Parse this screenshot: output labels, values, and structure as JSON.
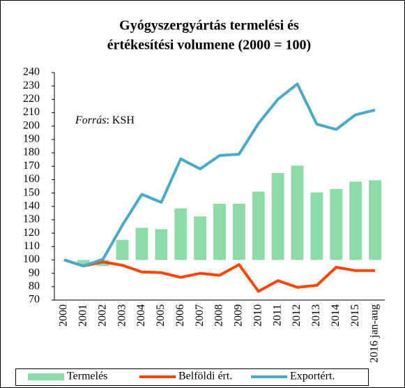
{
  "chart_data": {
    "type": "bar_line",
    "title": [
      "Gyógyszergyártás termelési és",
      "értékesítési volumene (2000 = 100)"
    ],
    "annotation": [
      "Forrás",
      ": KSH"
    ],
    "categories": [
      "2000",
      "2001",
      "2002",
      "2003",
      "2004",
      "2005",
      "2006",
      "2007",
      "2008",
      "2009",
      "2010",
      "2011",
      "2012",
      "2013",
      "2014",
      "2015",
      "2016 jan-aug"
    ],
    "bar_base": 100,
    "series": [
      {
        "name": "Termelés",
        "kind": "bar",
        "color": "#8ddba8",
        "values": [
          100,
          95.5,
          95.5,
          115,
          124,
          123,
          138.5,
          132.5,
          142,
          142,
          151,
          165,
          170.5,
          150.5,
          153,
          158.5,
          159.5
        ]
      },
      {
        "name": "Belföldi ért.",
        "kind": "line",
        "color": "#ff4500",
        "values": [
          100,
          95.5,
          98.5,
          96,
          91,
          90.5,
          87,
          90,
          88.5,
          96.5,
          76.5,
          84.5,
          79.5,
          81,
          94.5,
          92,
          92
        ]
      },
      {
        "name": "Exportért.",
        "kind": "line",
        "color": "#4aaac6",
        "values": [
          100,
          95.5,
          100.5,
          126,
          149,
          143,
          175.5,
          168,
          178,
          179,
          202,
          220,
          231.5,
          201.5,
          197.5,
          208.5,
          212
        ]
      }
    ],
    "ylim": [
      70,
      240
    ],
    "yticks": [
      70,
      80,
      90,
      100,
      110,
      120,
      130,
      140,
      150,
      160,
      170,
      180,
      190,
      200,
      210,
      220,
      230,
      240
    ]
  }
}
